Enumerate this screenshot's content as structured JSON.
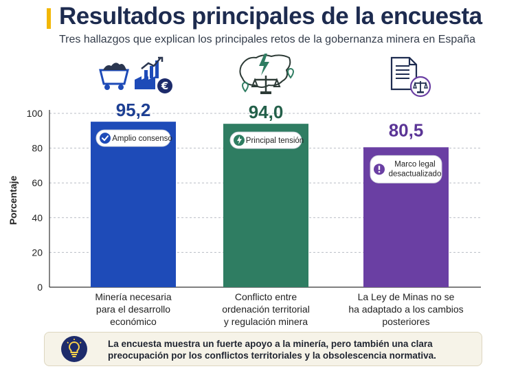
{
  "header": {
    "title": "Resultados principales de la encuesta",
    "subtitle": "Tres hallazgos que explican los principales retos de la gobernanza minera en España"
  },
  "chart_data": {
    "type": "bar",
    "title": "Resultados principales de la encuesta",
    "subtitle": "Tres hallazgos que explican los principales retos de la gobernanza minera en España",
    "ylabel": "Porcentaje",
    "xlabel": "",
    "ylim": [
      0,
      100
    ],
    "yticks": [
      0,
      20,
      40,
      60,
      80,
      100
    ],
    "grid": true,
    "categories": [
      "Minería necesaria para el desarrollo económico",
      "Conflicto entre ordenación territorial y regulación minera",
      "La Ley de Minas no se ha adaptado a los cambios posteriores"
    ],
    "category_lines": [
      [
        "Minería necesaria",
        "para el desarrollo",
        "económico"
      ],
      [
        "Conflicto entre",
        "ordenación territorial",
        "y regulación minera"
      ],
      [
        "La Ley de Minas no se",
        "ha adaptado a los cambios",
        "posteriores"
      ]
    ],
    "values": [
      95.2,
      94.0,
      80.5
    ],
    "value_labels": [
      "95,2",
      "94,0",
      "80,5"
    ],
    "colors": [
      "#1e4bb8",
      "#2f7d62",
      "#6a3fa3"
    ],
    "value_label_colors": [
      "#1d3f93",
      "#24604a",
      "#5b3596"
    ],
    "badges": [
      {
        "lines": [
          "Amplio consenso"
        ],
        "icon": "check-circle-icon"
      },
      {
        "lines": [
          "Principal tensión"
        ],
        "icon": "lightning-circle-icon"
      },
      {
        "lines": [
          "Marco legal",
          "desactualizado"
        ],
        "icon": "exclamation-circle-icon"
      }
    ],
    "header_icons": [
      "mining-cart-industry-euro-icon",
      "map-scales-lightning-icon",
      "document-scales-icon"
    ]
  },
  "footer": {
    "icon": "lightbulb-icon",
    "text": "La encuesta muestra un fuerte apoyo a la minería, pero también una clara preocupación por los conflictos territoriales y la obsolescencia normativa."
  }
}
